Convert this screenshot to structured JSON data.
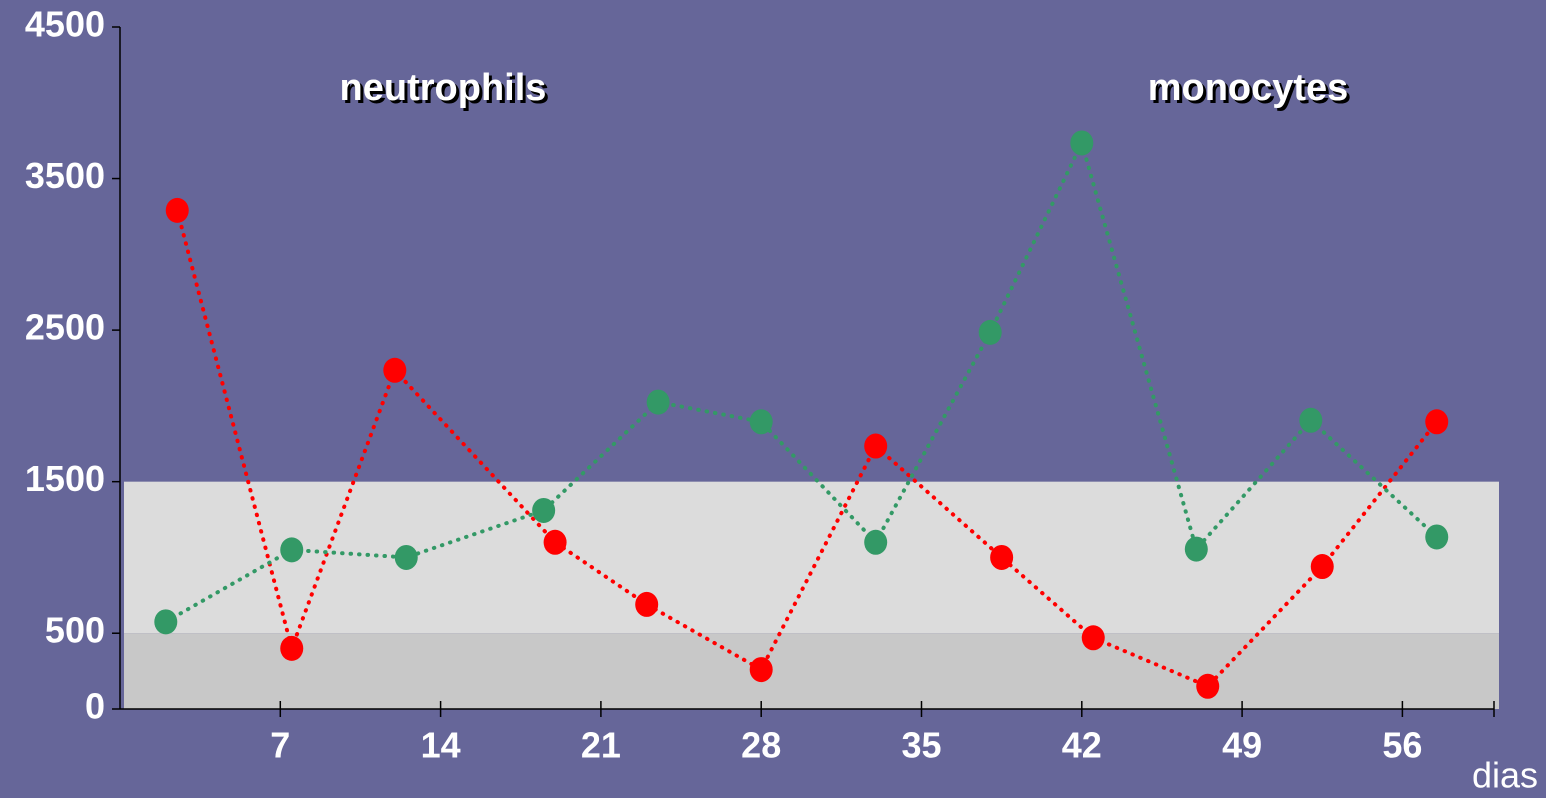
{
  "chart_data": {
    "type": "line",
    "x_label": "dias",
    "xlim": [
      0,
      60
    ],
    "xticks": [
      7,
      14,
      21,
      28,
      35,
      42,
      49,
      56
    ],
    "ylim": [
      0,
      4500
    ],
    "yticks": [
      0,
      500,
      1500,
      2500,
      3500,
      4500
    ],
    "bands": [
      {
        "from": 0,
        "to": 500,
        "color": "#c8c8c8"
      },
      {
        "from": 500,
        "to": 1500,
        "color": "#dcdcdc"
      }
    ],
    "series": [
      {
        "name": "neutrophils",
        "color": "#ff0000",
        "x": [
          2.5,
          7.5,
          12,
          19,
          23,
          28,
          33,
          38.5,
          42.5,
          47.5,
          52.5,
          57.5
        ],
        "values": [
          3290,
          400,
          2235,
          1100,
          690,
          260,
          1735,
          1000,
          470,
          150,
          940,
          1895
        ]
      },
      {
        "name": "monocytes",
        "color": "#339966",
        "x": [
          2,
          7.5,
          12.5,
          18.5,
          23.5,
          28,
          33,
          38,
          42,
          47,
          52,
          57.5
        ],
        "values": [
          575,
          1050,
          1000,
          1310,
          2025,
          1895,
          1100,
          2485,
          3735,
          1055,
          1905,
          1135
        ]
      }
    ]
  }
}
